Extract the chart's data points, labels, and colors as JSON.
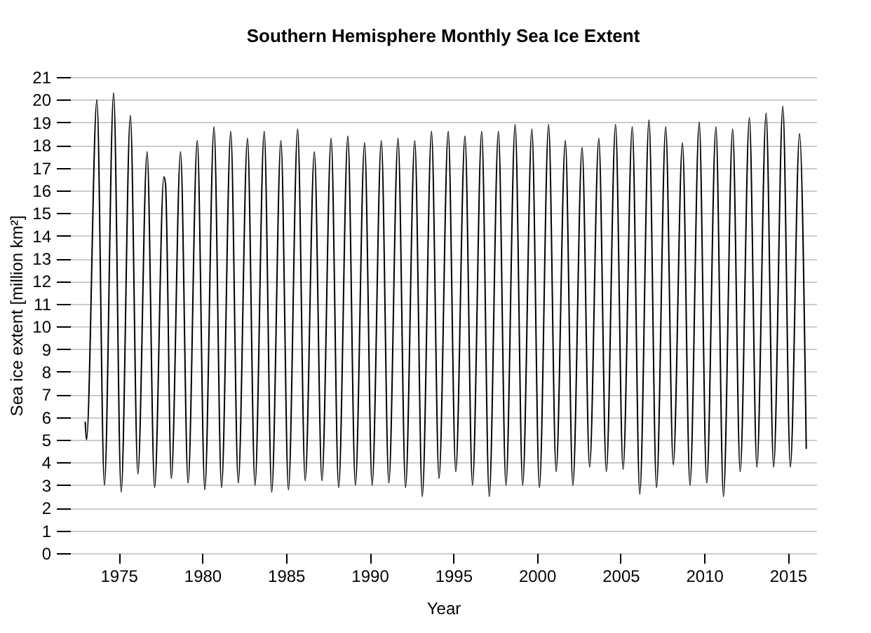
{
  "chart_data": {
    "type": "line",
    "title": "Southern Hemisphere Monthly Sea Ice Extent",
    "xlabel": "Year",
    "ylabel": "Sea ice extent [million km²]",
    "x": [
      1973.0,
      1973.08,
      1973.7,
      1974.15,
      1974.7,
      1975.15,
      1975.7,
      1976.15,
      1976.7,
      1977.15,
      1977.7,
      1977.8,
      1978.15,
      1978.7,
      1979.15,
      1979.7,
      1980.15,
      1980.7,
      1981.15,
      1981.7,
      1982.15,
      1982.7,
      1983.15,
      1983.7,
      1984.15,
      1984.7,
      1985.15,
      1985.7,
      1986.15,
      1986.7,
      1987.15,
      1987.7,
      1988.15,
      1988.7,
      1989.15,
      1989.7,
      1990.15,
      1990.7,
      1991.15,
      1991.7,
      1992.15,
      1992.7,
      1993.15,
      1993.7,
      1994.15,
      1994.7,
      1995.15,
      1995.7,
      1996.15,
      1996.7,
      1997.15,
      1997.7,
      1998.15,
      1998.7,
      1999.15,
      1999.7,
      2000.15,
      2000.7,
      2001.15,
      2001.7,
      2002.15,
      2002.7,
      2003.15,
      2003.7,
      2004.15,
      2004.7,
      2005.15,
      2005.7,
      2006.15,
      2006.7,
      2007.15,
      2007.7,
      2008.15,
      2008.7,
      2009.15,
      2009.7,
      2010.15,
      2010.7,
      2011.15,
      2011.7,
      2012.15,
      2012.7,
      2013.15,
      2013.7,
      2014.15,
      2014.7,
      2015.15,
      2015.7,
      2016.1
    ],
    "series": [
      {
        "color": "#000000",
        "values": [
          5.8,
          5.0,
          20.0,
          3.0,
          20.3,
          2.7,
          19.3,
          3.5,
          17.7,
          2.9,
          16.6,
          16.3,
          3.3,
          17.7,
          3.1,
          18.2,
          2.8,
          18.8,
          2.9,
          18.6,
          3.1,
          18.3,
          3.0,
          18.6,
          2.7,
          18.2,
          2.8,
          18.7,
          3.2,
          17.7,
          3.2,
          18.3,
          2.9,
          18.4,
          3.0,
          18.1,
          3.0,
          18.2,
          3.1,
          18.3,
          2.9,
          18.2,
          2.5,
          18.6,
          3.3,
          18.6,
          3.6,
          18.4,
          3.0,
          18.6,
          2.5,
          18.6,
          3.0,
          18.9,
          3.0,
          18.7,
          2.9,
          18.9,
          3.6,
          18.2,
          3.0,
          17.9,
          3.8,
          18.3,
          3.6,
          18.9,
          3.7,
          18.8,
          2.6,
          19.1,
          2.9,
          18.8,
          3.9,
          18.1,
          3.0,
          19.0,
          3.1,
          18.8,
          2.5,
          18.7,
          3.6,
          19.2,
          3.8,
          19.4,
          3.8,
          19.7,
          3.8,
          18.5,
          4.6
        ]
      }
    ],
    "xlim": [
      1972.1,
      2016.7
    ],
    "xticks": [
      1975,
      1980,
      1985,
      1990,
      1995,
      2000,
      2005,
      2010,
      2015
    ],
    "ylim": [
      0,
      21
    ],
    "yticks": [
      0,
      1,
      2,
      3,
      4,
      5,
      6,
      7,
      8,
      9,
      10,
      11,
      12,
      13,
      14,
      15,
      16,
      17,
      18,
      19,
      20,
      21
    ],
    "grid": "y",
    "marker": "none",
    "line_style": "solid"
  }
}
